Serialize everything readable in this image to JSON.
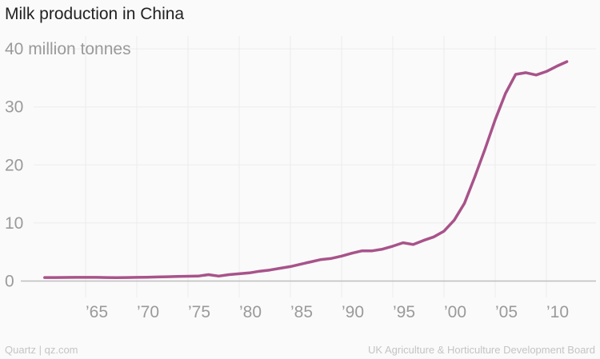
{
  "title": "Milk production in China",
  "source_left": "Quartz | qz.com",
  "source_right": "UK Agriculture & Horticulture Development Board",
  "chart_data": {
    "type": "line",
    "title": "Milk production in China",
    "ylabel": "million tonnes",
    "ylim": [
      0,
      40
    ],
    "xlim": [
      1961,
      2012
    ],
    "y_ticks": [
      0,
      10,
      20,
      30,
      40
    ],
    "y_tick_labels": [
      "0",
      "10",
      "20",
      "30",
      "40 million tonnes"
    ],
    "x_ticks": [
      1965,
      1970,
      1975,
      1980,
      1985,
      1990,
      1995,
      2000,
      2005,
      2010
    ],
    "x_tick_labels": [
      "’65",
      "’70",
      "’75",
      "’80",
      "’85",
      "’90",
      "’95",
      "’00",
      "’05",
      "’10"
    ],
    "grid": true,
    "color": "#a8538a",
    "series": [
      {
        "name": "Milk production",
        "x": [
          1961,
          1962,
          1963,
          1964,
          1965,
          1966,
          1967,
          1968,
          1969,
          1970,
          1971,
          1972,
          1973,
          1974,
          1975,
          1976,
          1977,
          1978,
          1979,
          1980,
          1981,
          1982,
          1983,
          1984,
          1985,
          1986,
          1987,
          1988,
          1989,
          1990,
          1991,
          1992,
          1993,
          1994,
          1995,
          1996,
          1997,
          1998,
          1999,
          2000,
          2001,
          2002,
          2003,
          2004,
          2005,
          2006,
          2007,
          2008,
          2009,
          2010,
          2011,
          2012
        ],
        "values": [
          0.6,
          0.6,
          0.62,
          0.63,
          0.64,
          0.63,
          0.6,
          0.58,
          0.6,
          0.63,
          0.66,
          0.7,
          0.75,
          0.78,
          0.82,
          0.85,
          1.1,
          0.85,
          1.1,
          1.25,
          1.4,
          1.7,
          1.9,
          2.2,
          2.5,
          2.9,
          3.3,
          3.7,
          3.9,
          4.3,
          4.8,
          5.2,
          5.2,
          5.5,
          6.0,
          6.6,
          6.3,
          7.0,
          7.6,
          8.6,
          10.5,
          13.4,
          17.9,
          22.7,
          27.8,
          32.3,
          35.6,
          35.9,
          35.5,
          36.1,
          37.0,
          37.8
        ]
      }
    ]
  }
}
